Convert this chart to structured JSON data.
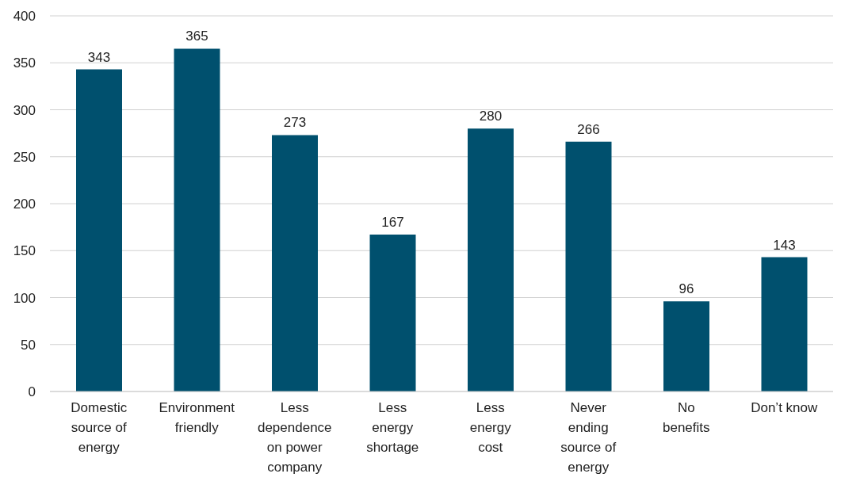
{
  "chart_data": {
    "type": "bar",
    "categories": [
      "Domestic source of energy",
      "Environment friendly",
      "Less dependence on power company",
      "Less energy shortage",
      "Less energy cost",
      "Never ending source of energy",
      "No benefits",
      "Don’t know"
    ],
    "values": [
      343,
      365,
      273,
      167,
      280,
      266,
      96,
      143
    ],
    "color": "#00506e",
    "ylim": [
      0,
      400
    ],
    "yticks": [
      0,
      50,
      100,
      150,
      200,
      250,
      300,
      350,
      400
    ],
    "grid": "y",
    "data_labels": true,
    "legend": false
  }
}
